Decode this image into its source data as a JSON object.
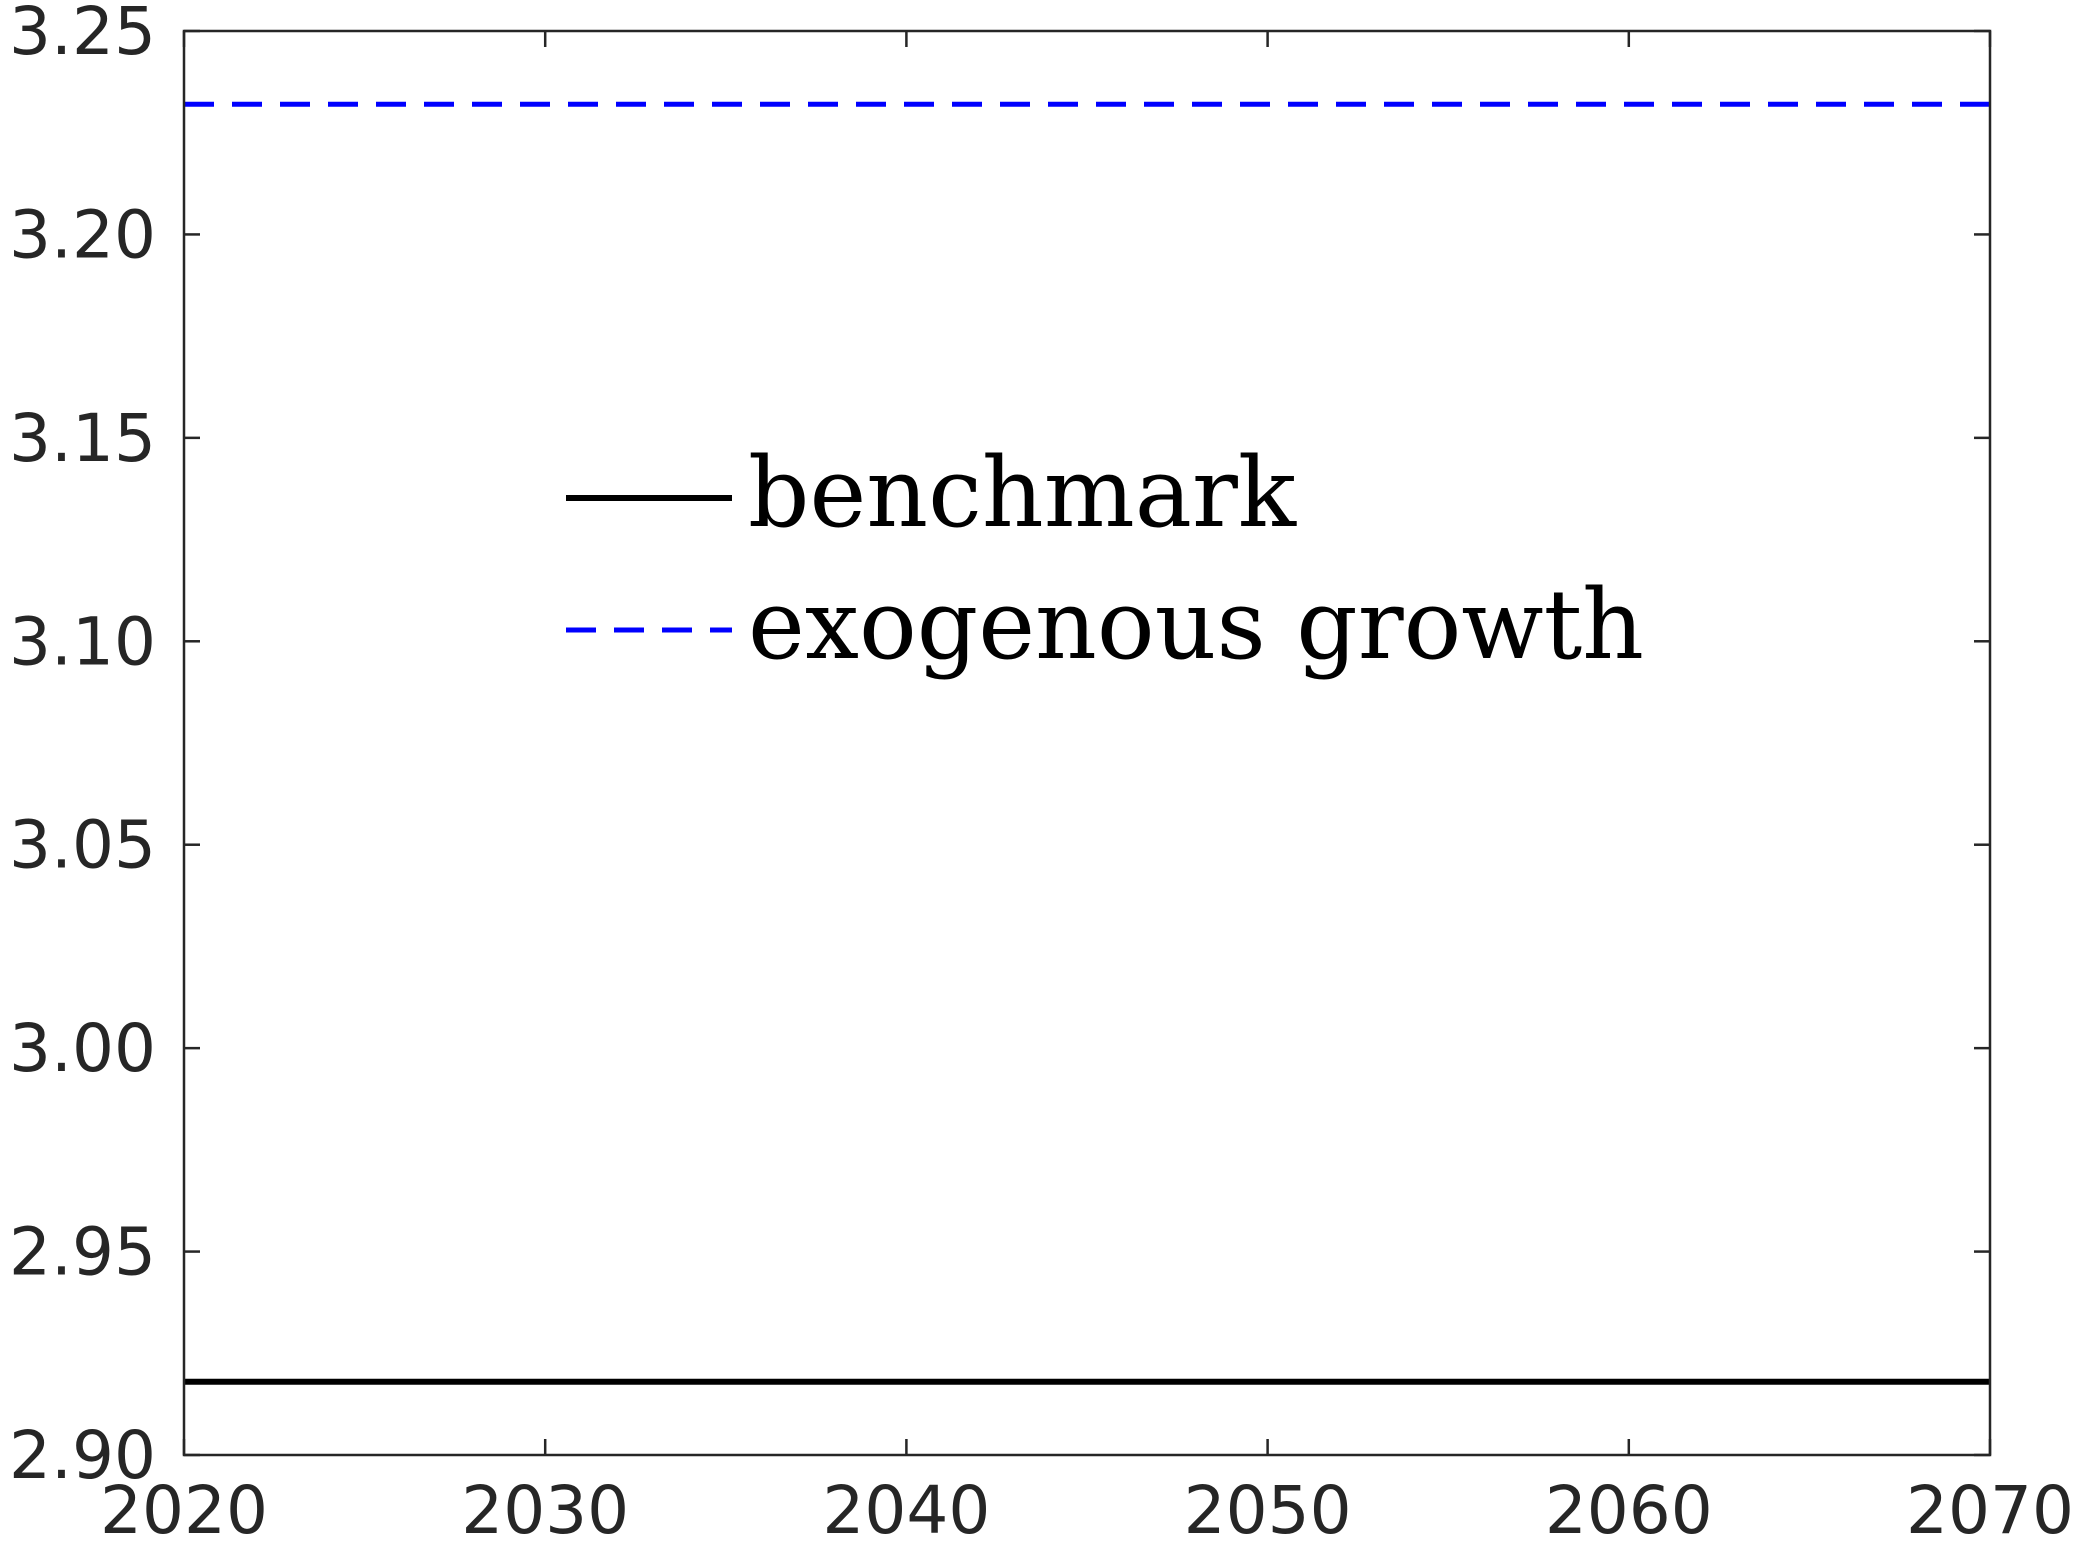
{
  "chart_data": {
    "type": "line",
    "title": "",
    "xlabel": "",
    "ylabel": "",
    "xlim": [
      2020,
      2070
    ],
    "ylim": [
      2.9,
      3.25
    ],
    "xticks": [
      2020,
      2030,
      2040,
      2050,
      2060,
      2070
    ],
    "xtick_labels": [
      "2020",
      "2030",
      "2040",
      "2050",
      "2060",
      "2070"
    ],
    "yticks": [
      2.9,
      2.95,
      3.0,
      3.05,
      3.1,
      3.15,
      3.2,
      3.25
    ],
    "ytick_labels": [
      "2.90",
      "2.95",
      "3.00",
      "3.05",
      "3.10",
      "3.15",
      "3.20",
      "3.25"
    ],
    "grid": false,
    "legend_position": "upper-center",
    "series": [
      {
        "name": "benchmark",
        "color": "#000000",
        "dash": "solid",
        "x": [
          2020,
          2070
        ],
        "y": [
          2.918,
          2.918
        ]
      },
      {
        "name": "exogenous growth",
        "color": "#0000ff",
        "dash": "dashed",
        "x": [
          2020,
          2070
        ],
        "y": [
          3.232,
          3.232
        ]
      }
    ]
  }
}
